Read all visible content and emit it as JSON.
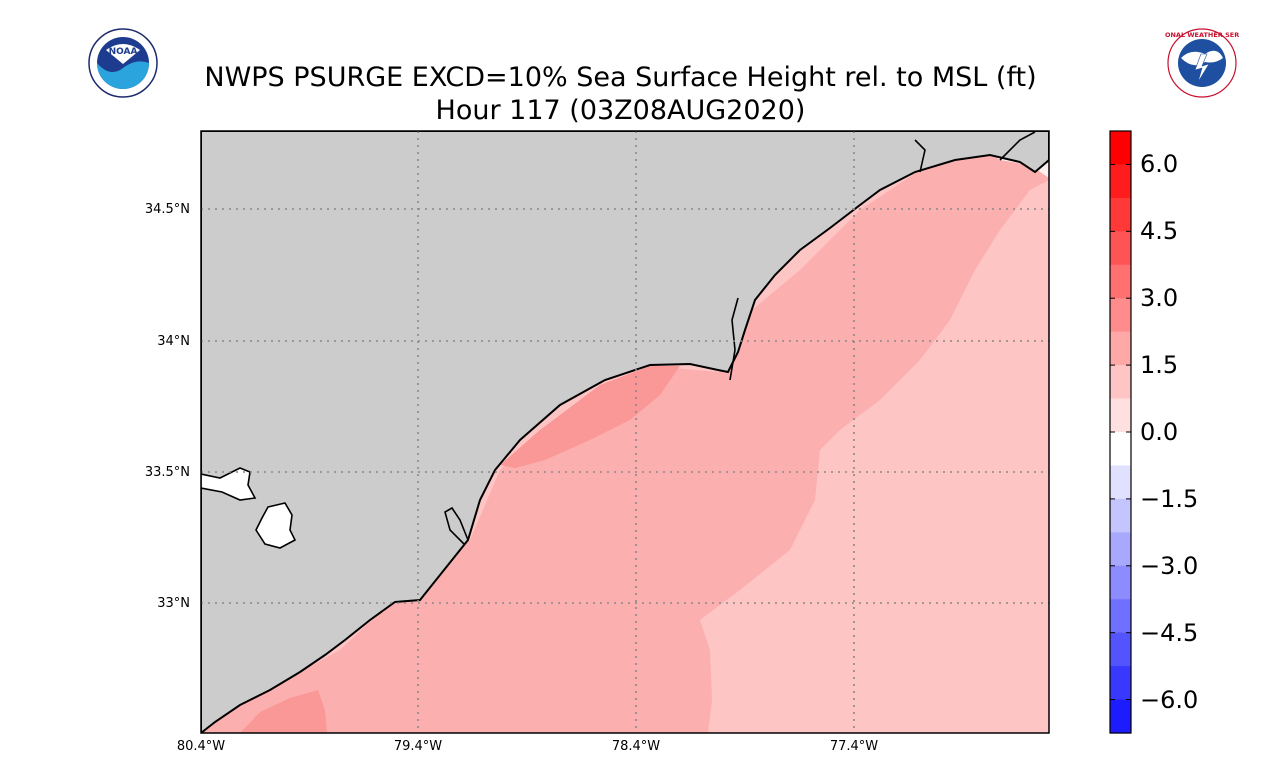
{
  "title": {
    "line1": "NWPS PSURGE EXCD=10% Sea Surface Height rel. to MSL (ft)",
    "line2": "Hour 117 (03Z08AUG2020)"
  },
  "logos": {
    "noaa": {
      "text": "NOAA",
      "icon": "noaa-logo"
    },
    "nws": {
      "text": "NATIONAL WEATHER SERVICE",
      "icon": "nws-logo"
    }
  },
  "map": {
    "land_color": "#cccccc",
    "lat_labels": [
      {
        "value": 34.5,
        "text": "34.5°N"
      },
      {
        "value": 34.0,
        "text": "34°N"
      },
      {
        "value": 33.5,
        "text": "33.5°N"
      },
      {
        "value": 33.0,
        "text": "33°N"
      }
    ],
    "lon_labels": [
      {
        "value": -80.4,
        "text": "80.4°W"
      },
      {
        "value": -79.4,
        "text": "79.4°W"
      },
      {
        "value": -78.4,
        "text": "78.4°W"
      },
      {
        "value": -77.4,
        "text": "77.4°W"
      }
    ],
    "surge_levels": [
      {
        "range": "0.0–1.5",
        "color": "#fff0f0"
      },
      {
        "range": "1.5–2.25",
        "color": "#fec5c5"
      },
      {
        "range": "2.25–3.0",
        "color": "#fcafaf"
      },
      {
        "range": "3.0–3.75",
        "color": "#fa9898"
      }
    ]
  },
  "colorbar": {
    "min": -6.75,
    "max": 6.75,
    "ticks": [
      "6.0",
      "4.5",
      "3.0",
      "1.5",
      "0.0",
      "−1.5",
      "−3.0",
      "−4.5",
      "−6.0"
    ],
    "tick_values": [
      6.0,
      4.5,
      3.0,
      1.5,
      0.0,
      -1.5,
      -3.0,
      -4.5,
      -6.0
    ],
    "colors": [
      "#ff0000",
      "#ff1c1c",
      "#ff3838",
      "#ff5454",
      "#ff7070",
      "#ff8c8c",
      "#ffa8a8",
      "#ffc4c4",
      "#ffe0e0",
      "#ffffff",
      "#e0e0ff",
      "#c4c4ff",
      "#a8a8ff",
      "#8c8cff",
      "#7070ff",
      "#5454ff",
      "#3838ff",
      "#1c1cff"
    ]
  }
}
